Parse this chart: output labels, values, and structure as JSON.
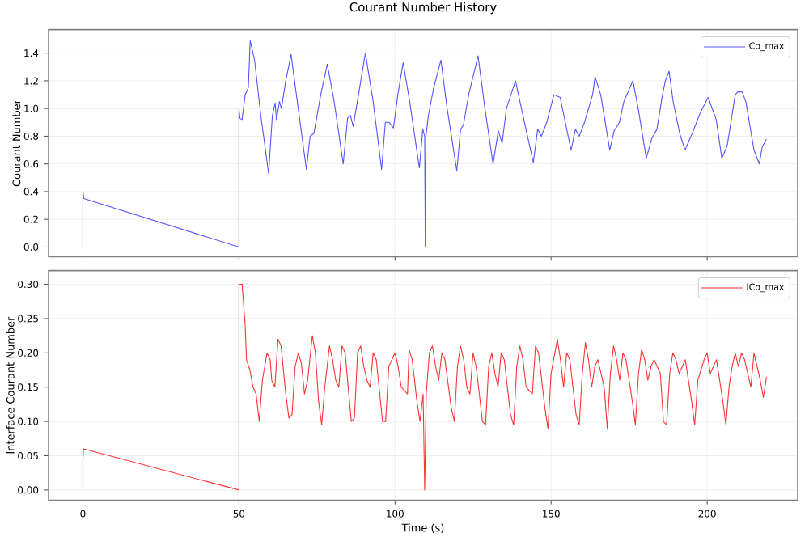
{
  "chart_data": [
    {
      "type": "line",
      "title": "Courant Number History",
      "ylabel": "Courant Number",
      "xlim": [
        -11,
        229
      ],
      "xticks": [
        0,
        50,
        100,
        150,
        200
      ],
      "ylim": [
        -0.07,
        1.57
      ],
      "yticks": [
        {
          "value": 0,
          "label": "0.0"
        },
        0.2,
        0.4,
        0.6,
        0.8,
        {
          "value": 1,
          "label": "1.0"
        },
        1.2,
        1.4
      ],
      "tick_labels": "y",
      "grid": true,
      "legend": "top right",
      "series": [
        {
          "name": "Co_max",
          "color": "#5555ff",
          "x": [
            0,
            0,
            0.3,
            50,
            50,
            50.3,
            51,
            52,
            53,
            53.6,
            55,
            57,
            59.5,
            60.7,
            61.6,
            62,
            63,
            63.6,
            65,
            66.7,
            68.4,
            71.6,
            72.8,
            74,
            76.2,
            78.3,
            80.5,
            83.4,
            84.8,
            85.7,
            86.6,
            88.3,
            90.5,
            93,
            95.7,
            96.9,
            98.1,
            99.5,
            100.9,
            102.6,
            104.7,
            107.8,
            108.9,
            109.5,
            109.7,
            109.9,
            110.7,
            112.4,
            114.7,
            116.7,
            119.8,
            121,
            121.9,
            123.6,
            126.6,
            128.8,
            131.4,
            133.1,
            134.3,
            135.7,
            138.6,
            140.5,
            144.3,
            145.7,
            146.9,
            148.6,
            150.9,
            152.9,
            156.4,
            157.8,
            159,
            160.7,
            163.3,
            164.1,
            165.9,
            168.8,
            170.2,
            171.9,
            173.3,
            176.2,
            177.9,
            180.5,
            182.2,
            183.9,
            185.7,
            186.6,
            187.8,
            189.1,
            191.2,
            192.9,
            195.2,
            197.8,
            200.3,
            202.9,
            204.7,
            206.4,
            209,
            209.8,
            211.2,
            212.4,
            215,
            216.7,
            217.6,
            219
          ],
          "values": [
            0,
            0.4,
            0.35,
            0,
            1.0,
            0.93,
            0.92,
            1.1,
            1.15,
            1.49,
            1.35,
            0.95,
            0.53,
            0.95,
            1.04,
            0.92,
            1.05,
            1.0,
            1.2,
            1.39,
            1.1,
            0.56,
            0.8,
            0.82,
            1.1,
            1.32,
            1.05,
            0.6,
            0.93,
            0.95,
            0.87,
            1.1,
            1.4,
            1.05,
            0.56,
            0.9,
            0.9,
            0.86,
            1.1,
            1.33,
            1.05,
            0.57,
            0.85,
            0.8,
            0,
            0.8,
            0.95,
            1.15,
            1.35,
            1.0,
            0.55,
            0.85,
            0.88,
            1.1,
            1.38,
            1.0,
            0.6,
            0.84,
            0.75,
            1.0,
            1.2,
            1.0,
            0.61,
            0.85,
            0.8,
            0.9,
            1.1,
            1.08,
            0.7,
            0.85,
            0.8,
            0.9,
            1.1,
            1.23,
            1.1,
            0.7,
            0.84,
            0.9,
            1.05,
            1.2,
            1.0,
            0.64,
            0.78,
            0.85,
            1.1,
            1.2,
            1.27,
            1.05,
            0.82,
            0.7,
            0.82,
            0.97,
            1.08,
            0.92,
            0.64,
            0.73,
            1.1,
            1.12,
            1.12,
            1.05,
            0.7,
            0.6,
            0.72,
            0.78
          ]
        }
      ]
    },
    {
      "type": "line",
      "xlabel": "Time (s)",
      "ylabel": "Interface Courant Number",
      "xlim": [
        -11,
        229
      ],
      "xticks": [
        0,
        50,
        100,
        150,
        200
      ],
      "ylim": [
        -0.015,
        0.32
      ],
      "yticks": [
        {
          "value": 0,
          "label": "0.00"
        },
        {
          "value": 0.05,
          "label": "0.05"
        },
        {
          "value": 0.1,
          "label": "0.10"
        },
        {
          "value": 0.15,
          "label": "0.15"
        },
        {
          "value": 0.2,
          "label": "0.20"
        },
        {
          "value": 0.25,
          "label": "0.25"
        },
        {
          "value": 0.3,
          "label": "0.30"
        }
      ],
      "grid": true,
      "legend": "top right",
      "series": [
        {
          "name": "ICo_max",
          "color": "#ff3333",
          "x": [
            0,
            0,
            0.2,
            50,
            50,
            51,
            52,
            52.4,
            53.5,
            54.5,
            55.5,
            56.5,
            57.5,
            59,
            60,
            60.5,
            61.5,
            62.5,
            63.5,
            65,
            66,
            67,
            68,
            69,
            70,
            71,
            72,
            73.5,
            74.5,
            75.5,
            76.5,
            77.5,
            79,
            80,
            81,
            82,
            83,
            84,
            86,
            87,
            88,
            89,
            90,
            91,
            92,
            93,
            94,
            96,
            97,
            98,
            100,
            101,
            102,
            104,
            104.5,
            105.5,
            107,
            108,
            109,
            109.5,
            110,
            111,
            112,
            113,
            114,
            115,
            116,
            118,
            119,
            120,
            121,
            122,
            123,
            124,
            125,
            126,
            128,
            129,
            130,
            131,
            132,
            133,
            134,
            135,
            137,
            138,
            139,
            140,
            141,
            142,
            144,
            145,
            146,
            148,
            149,
            150,
            152,
            153,
            154,
            155,
            156,
            158,
            159,
            160,
            161,
            162,
            163,
            164,
            165,
            166,
            167,
            168,
            169,
            170,
            171,
            172,
            173,
            174,
            176,
            177,
            178,
            179,
            180,
            181,
            182,
            183,
            185,
            186,
            187,
            188,
            189,
            190,
            191,
            192,
            193,
            195,
            196,
            197,
            199,
            200,
            201,
            202,
            203,
            205,
            206,
            207,
            208,
            209,
            210,
            211,
            212,
            214,
            215,
            217,
            218,
            219
          ],
          "values": [
            0,
            0.045,
            0.06,
            0,
            0.3,
            0.3,
            0.24,
            0.19,
            0.175,
            0.15,
            0.14,
            0.1,
            0.16,
            0.2,
            0.19,
            0.16,
            0.15,
            0.22,
            0.21,
            0.14,
            0.105,
            0.11,
            0.18,
            0.2,
            0.185,
            0.14,
            0.16,
            0.225,
            0.2,
            0.13,
            0.095,
            0.15,
            0.21,
            0.19,
            0.16,
            0.15,
            0.21,
            0.2,
            0.1,
            0.105,
            0.2,
            0.21,
            0.18,
            0.16,
            0.15,
            0.2,
            0.19,
            0.1,
            0.1,
            0.18,
            0.2,
            0.18,
            0.15,
            0.14,
            0.205,
            0.19,
            0.13,
            0.1,
            0.14,
            0,
            0.14,
            0.2,
            0.21,
            0.18,
            0.16,
            0.2,
            0.19,
            0.12,
            0.1,
            0.18,
            0.21,
            0.19,
            0.15,
            0.14,
            0.2,
            0.18,
            0.1,
            0.095,
            0.18,
            0.2,
            0.17,
            0.15,
            0.2,
            0.19,
            0.11,
            0.095,
            0.18,
            0.21,
            0.19,
            0.15,
            0.14,
            0.21,
            0.2,
            0.12,
            0.09,
            0.17,
            0.22,
            0.19,
            0.15,
            0.2,
            0.19,
            0.11,
            0.095,
            0.17,
            0.215,
            0.19,
            0.15,
            0.18,
            0.19,
            0.17,
            0.15,
            0.09,
            0.17,
            0.21,
            0.19,
            0.16,
            0.2,
            0.19,
            0.13,
            0.095,
            0.17,
            0.205,
            0.19,
            0.16,
            0.18,
            0.19,
            0.17,
            0.1,
            0.095,
            0.17,
            0.2,
            0.19,
            0.17,
            0.18,
            0.19,
            0.13,
            0.095,
            0.16,
            0.19,
            0.2,
            0.17,
            0.18,
            0.19,
            0.13,
            0.095,
            0.15,
            0.18,
            0.2,
            0.18,
            0.2,
            0.19,
            0.15,
            0.2,
            0.16,
            0.135,
            0.165
          ]
        }
      ]
    }
  ]
}
